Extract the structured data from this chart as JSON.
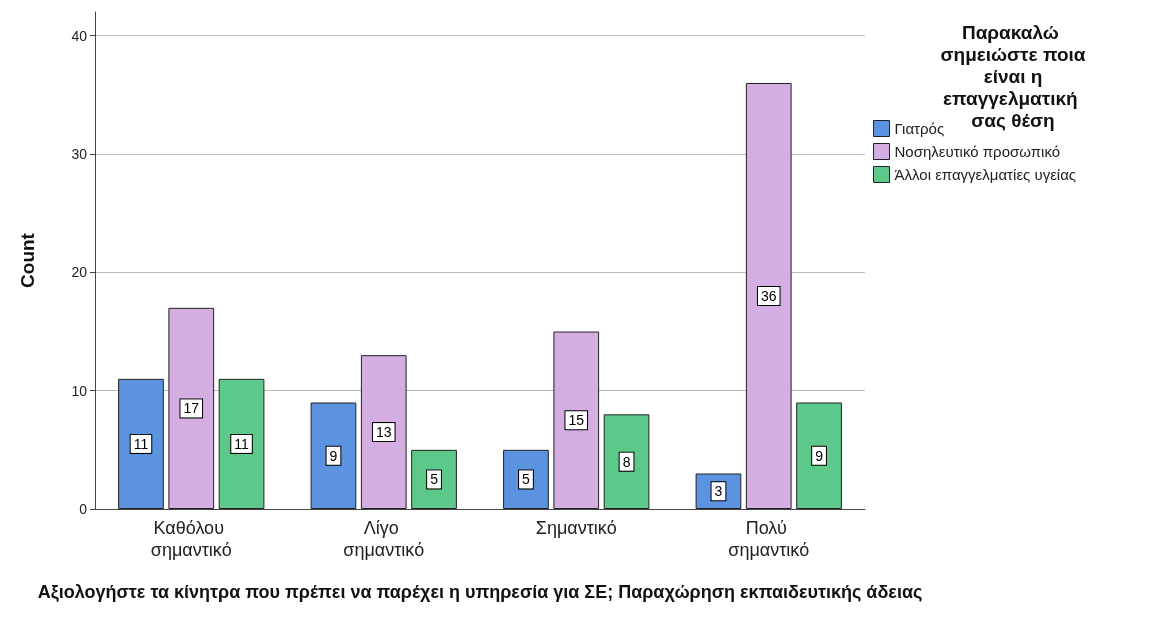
{
  "chart_data": {
    "type": "bar",
    "xlabel": "Αξιολογήστε τα κίνητρα που πρέπει να παρέχει η υπηρεσία για ΣΕ; Παραχώρηση εκπαιδευτικής άδειας",
    "ylabel": "Count",
    "legend_title": "Παρακαλώ σημειώστε ποια είναι η επαγγελματική σας θέση",
    "categories": [
      "Καθόλου σημαντικό",
      "Λίγο σημαντικό",
      "Σημαντικό",
      "Πολύ σημαντικό"
    ],
    "series": [
      {
        "name": "Γιατρός",
        "color": "#5b93e0",
        "values": [
          11,
          9,
          5,
          3
        ]
      },
      {
        "name": "Νοσηλευτικό προσωπικό",
        "color": "#d4ade3",
        "values": [
          17,
          13,
          15,
          36
        ]
      },
      {
        "name": "Άλλοι επαγγελματίες υγείας",
        "color": "#5cc98a",
        "values": [
          11,
          5,
          8,
          9
        ]
      }
    ],
    "ylim": [
      0,
      42
    ],
    "yticks": [
      0,
      10,
      20,
      30,
      40
    ],
    "grid": "y",
    "legend": "right",
    "data_labels": true
  }
}
